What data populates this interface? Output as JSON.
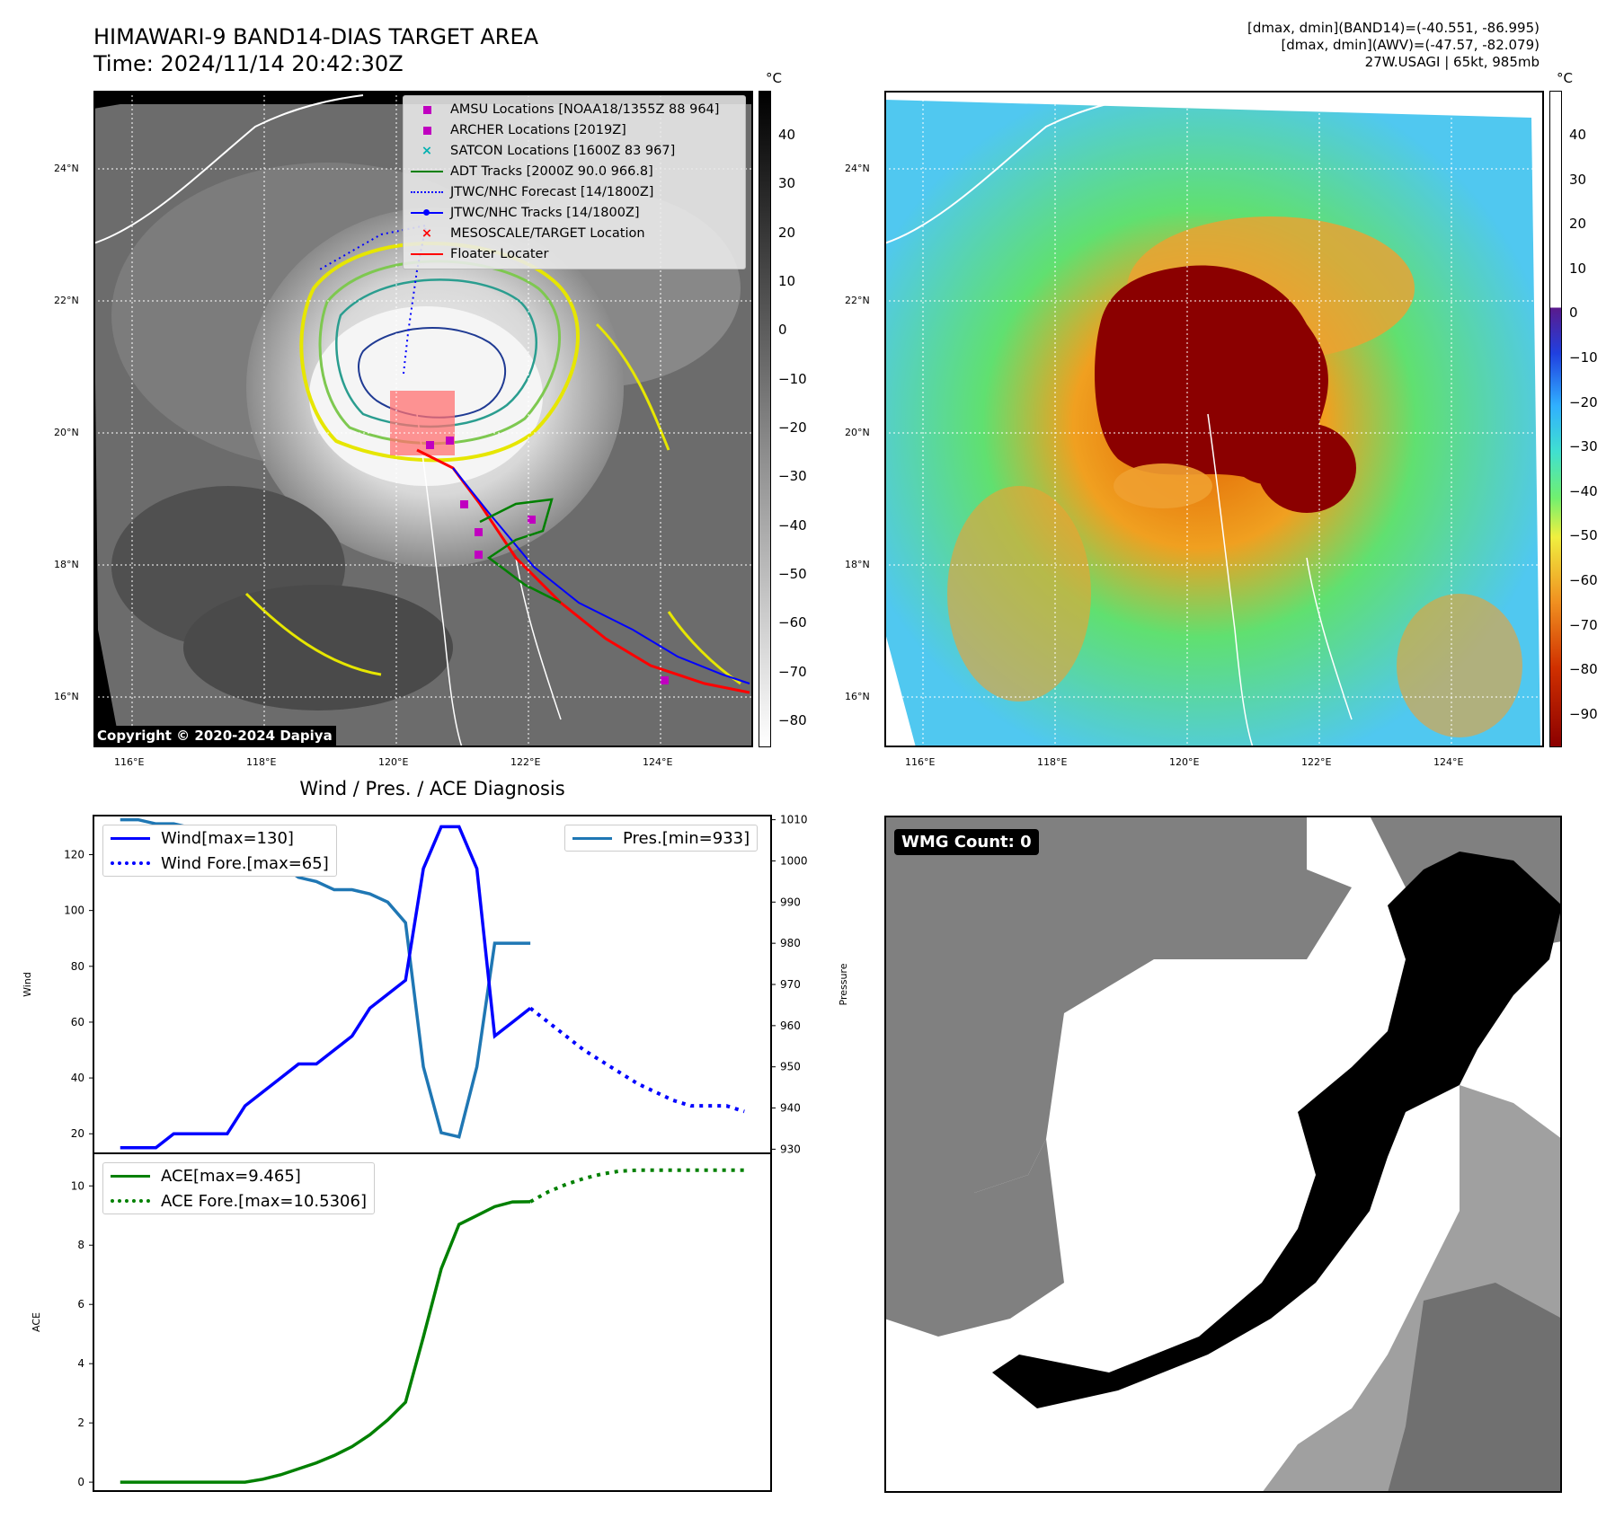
{
  "header": {
    "title_line1": "HIMAWARI-9 BAND14-DIAS TARGET AREA",
    "title_line2": "Time: 2024/11/14 20:42:30Z",
    "info_line1": "[dmax, dmin](BAND14)=(-40.551, -86.995)",
    "info_line2": "[dmax, dmin](AWV)=(-47.57, -82.079)",
    "info_line3": "27W.USAGI | 65kt, 985mb"
  },
  "map_ir": {
    "legend": [
      {
        "label": "AMSU Locations [NOAA18/1355Z 88 964]",
        "color": "#c000c0",
        "symbol": "square"
      },
      {
        "label": "ARCHER Locations [2019Z]",
        "color": "#c000c0",
        "symbol": "square"
      },
      {
        "label": "SATCON Locations [1600Z 83 967]",
        "color": "#00b0b0",
        "symbol": "x"
      },
      {
        "label": "ADT Tracks [2000Z 90.0 966.8]",
        "color": "#008000",
        "symbol": "line"
      },
      {
        "label": "JTWC/NHC Forecast [14/1800Z]",
        "color": "#0000ff",
        "symbol": "dotted"
      },
      {
        "label": "JTWC/NHC Tracks [14/1800Z]",
        "color": "#0000ff",
        "symbol": "line-dot"
      },
      {
        "label": "MESOSCALE/TARGET Location",
        "color": "#ff0000",
        "symbol": "x"
      },
      {
        "label": "Floater Locater",
        "color": "#ff0000",
        "symbol": "line"
      }
    ],
    "copyright": "Copyright © 2020-2024 Dapiya",
    "colorbar_unit": "°C",
    "colorbar_ticks": [
      "40",
      "30",
      "20",
      "10",
      "0",
      "−10",
      "−20",
      "−30",
      "−40",
      "−50",
      "−60",
      "−70",
      "−80"
    ]
  },
  "map_awv": {
    "colorbar_unit": "°C",
    "colorbar_ticks": [
      "40",
      "30",
      "20",
      "10",
      "0",
      "−10",
      "−20",
      "−30",
      "−40",
      "−50",
      "−60",
      "−70",
      "−80",
      "−90"
    ]
  },
  "map_axes": {
    "lon_labels": [
      "116°E",
      "118°E",
      "120°E",
      "122°E",
      "124°E"
    ],
    "lat_labels": [
      "24°N",
      "22°N",
      "20°N",
      "18°N",
      "16°N"
    ]
  },
  "diag_title": "Wind / Pres. / ACE Diagnosis",
  "wmg": {
    "label": "WMG Count: 0"
  },
  "colors": {
    "wind": "#0000ff",
    "pres": "#1f77b4",
    "ace": "#008000"
  },
  "chart_data": [
    {
      "type": "line",
      "title": "Wind / Pres. / ACE Diagnosis",
      "ylabel": "Wind",
      "y2label": "Pressure",
      "ylim": [
        13,
        134
      ],
      "y2lim": [
        929,
        1011
      ],
      "yticks": [
        20,
        40,
        60,
        80,
        100,
        120
      ],
      "y2ticks": [
        930,
        940,
        950,
        960,
        970,
        980,
        990,
        1000,
        1010
      ],
      "series": [
        {
          "name": "Wind[max=130]",
          "axis": "left",
          "style": "solid",
          "x": [
            0,
            1,
            2,
            3,
            4,
            5,
            6,
            7,
            8,
            9,
            10,
            11,
            12,
            13,
            14,
            15,
            16,
            17,
            18,
            19,
            20,
            21,
            22,
            23
          ],
          "values": [
            15,
            15,
            15,
            20,
            20,
            20,
            20,
            30,
            35,
            40,
            45,
            45,
            50,
            55,
            65,
            70,
            75,
            115,
            130,
            130,
            115,
            55,
            60,
            65
          ]
        },
        {
          "name": "Wind Fore.[max=65]",
          "axis": "left",
          "style": "dotted",
          "x": [
            23,
            24,
            25,
            26,
            27,
            28,
            29,
            30,
            31,
            32,
            33,
            34,
            35
          ],
          "values": [
            65,
            60,
            55,
            50,
            46,
            42,
            38,
            35,
            32,
            30,
            30,
            30,
            28
          ]
        },
        {
          "name": "Pres.[min=933]",
          "axis": "right",
          "style": "solid",
          "x": [
            0,
            1,
            2,
            3,
            4,
            5,
            6,
            7,
            8,
            9,
            10,
            11,
            12,
            13,
            14,
            15,
            16,
            17,
            18,
            19,
            20,
            21,
            22,
            23
          ],
          "values": [
            1010,
            1010,
            1009,
            1009,
            1008,
            1007,
            1006,
            1003,
            1001,
            999,
            996,
            995,
            993,
            993,
            992,
            990,
            985,
            950,
            934,
            933,
            950,
            980,
            980,
            980
          ]
        }
      ]
    },
    {
      "type": "line",
      "ylabel": "ACE",
      "ylim": [
        -0.3,
        11.1
      ],
      "yticks": [
        0,
        2,
        4,
        6,
        8,
        10
      ],
      "series": [
        {
          "name": "ACE[max=9.465]",
          "style": "solid",
          "x": [
            0,
            1,
            2,
            3,
            4,
            5,
            6,
            7,
            8,
            9,
            10,
            11,
            12,
            13,
            14,
            15,
            16,
            17,
            18,
            19,
            20,
            21,
            22,
            23
          ],
          "values": [
            0,
            0,
            0,
            0,
            0,
            0,
            0,
            0,
            0.1,
            0.25,
            0.45,
            0.65,
            0.9,
            1.2,
            1.6,
            2.1,
            2.7,
            4.9,
            7.2,
            8.7,
            9.0,
            9.3,
            9.46,
            9.465
          ]
        },
        {
          "name": "ACE Fore.[max=10.5306]",
          "style": "dotted",
          "x": [
            23,
            24,
            25,
            26,
            27,
            28,
            29,
            30,
            31,
            32,
            33,
            34,
            35
          ],
          "values": [
            9.465,
            9.8,
            10.05,
            10.25,
            10.4,
            10.5,
            10.53,
            10.53,
            10.53,
            10.53,
            10.53,
            10.53,
            10.53
          ]
        }
      ]
    }
  ]
}
